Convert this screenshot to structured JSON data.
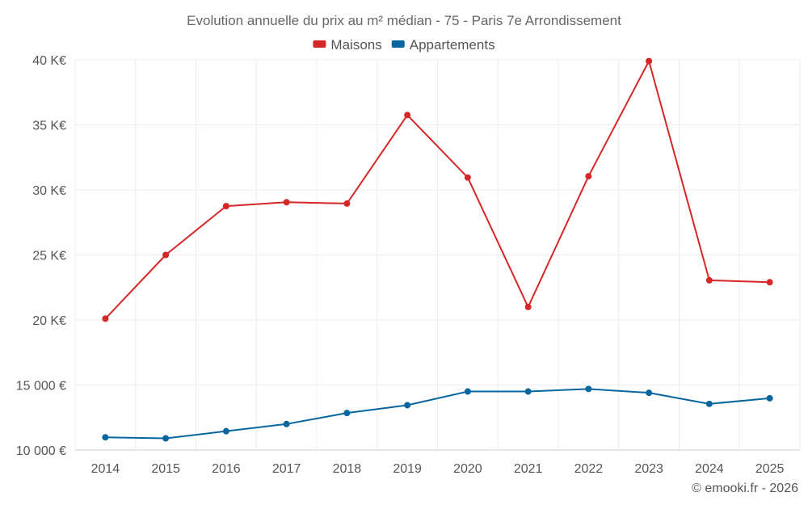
{
  "chart_data": {
    "type": "line",
    "title": "Evolution annuelle du prix au m² médian - 75 - Paris 7e Arrondissement",
    "categories": [
      "2014",
      "2015",
      "2016",
      "2017",
      "2018",
      "2019",
      "2020",
      "2021",
      "2022",
      "2023",
      "2024",
      "2025"
    ],
    "y_ticks": [
      {
        "value": 10000,
        "label": "10 000 €"
      },
      {
        "value": 15000,
        "label": "15 000 €"
      },
      {
        "value": 20000,
        "label": "20 K€"
      },
      {
        "value": 25000,
        "label": "25 K€"
      },
      {
        "value": 30000,
        "label": "30 K€"
      },
      {
        "value": 35000,
        "label": "35 K€"
      },
      {
        "value": 40000,
        "label": "40 K€"
      }
    ],
    "ylim": [
      10000,
      40000
    ],
    "series": [
      {
        "name": "Maisons",
        "color": "#d62728",
        "values": [
          20100,
          25000,
          28750,
          29050,
          28950,
          35750,
          30950,
          21000,
          31050,
          39900,
          23050,
          22900
        ]
      },
      {
        "name": "Appartements",
        "color": "#07669d",
        "values": [
          10980,
          10900,
          11450,
          12000,
          12850,
          13450,
          14500,
          14500,
          14700,
          14400,
          13550,
          13980
        ]
      }
    ],
    "legend_position": "top-center",
    "credit": "© emooki.fr - 2026"
  }
}
